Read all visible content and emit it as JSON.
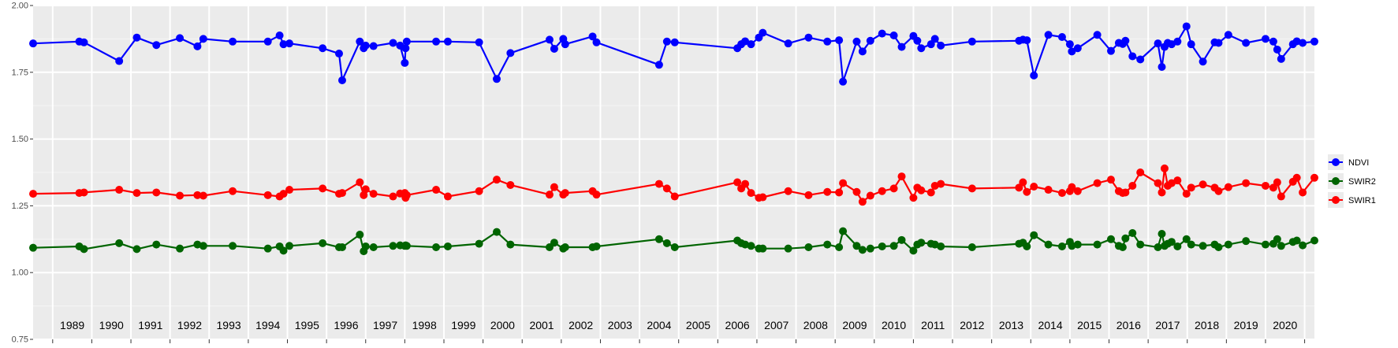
{
  "chart_data": {
    "type": "line",
    "title": "",
    "xlabel": "",
    "ylabel": "",
    "ylim": [
      0.75,
      2.0
    ],
    "y_ticks": [
      "0.75",
      "1.00",
      "1.25",
      "1.50",
      "1.75",
      "2.00"
    ],
    "x_range": [
      1988.0,
      2020.75
    ],
    "year_labels": [
      "1989",
      "1990",
      "1991",
      "1992",
      "1993",
      "1994",
      "1995",
      "1996",
      "1997",
      "1998",
      "1999",
      "2000",
      "2001",
      "2002",
      "2003",
      "2004",
      "2005",
      "2006",
      "2007",
      "2008",
      "2009",
      "2010",
      "2011",
      "2012",
      "2013",
      "2014",
      "2015",
      "2016",
      "2017",
      "2018",
      "2019",
      "2020"
    ],
    "grid": true,
    "legend_position": "right",
    "colors": {
      "panel": "#ebebeb",
      "grid_major": "#ffffff",
      "tick_text": "#4d4d4d",
      "year_text": "#000000"
    },
    "x": [
      1988.0,
      1989.18,
      1989.3,
      1990.2,
      1990.65,
      1991.15,
      1991.75,
      1992.2,
      1992.35,
      1993.1,
      1994.0,
      1994.3,
      1994.4,
      1994.55,
      1995.4,
      1995.82,
      1995.9,
      1996.35,
      1996.45,
      1996.5,
      1996.7,
      1997.2,
      1997.38,
      1997.5,
      1997.52,
      1997.55,
      1998.3,
      1998.6,
      1999.4,
      1999.85,
      2000.2,
      2001.2,
      2001.32,
      2001.55,
      2001.6,
      2002.3,
      2002.4,
      2004.0,
      2004.2,
      2004.4,
      2006.0,
      2006.1,
      2006.2,
      2006.35,
      2006.55,
      2006.65,
      2007.3,
      2007.82,
      2008.3,
      2008.6,
      2008.7,
      2009.05,
      2009.2,
      2009.4,
      2009.7,
      2010.0,
      2010.2,
      2010.5,
      2010.6,
      2010.7,
      2010.95,
      2011.05,
      2011.2,
      2012.0,
      2013.2,
      2013.3,
      2013.4,
      2013.58,
      2013.95,
      2014.3,
      2014.5,
      2014.55,
      2014.7,
      2015.2,
      2015.55,
      2015.75,
      2015.85,
      2015.92,
      2016.1,
      2016.3,
      2016.75,
      2016.85,
      2016.92,
      2017.0,
      2017.1,
      2017.25,
      2017.48,
      2017.6,
      2017.9,
      2018.2,
      2018.3,
      2018.55,
      2019.0,
      2019.5,
      2019.7,
      2019.8,
      2019.9,
      2020.2,
      2020.3,
      2020.45,
      2020.75
    ],
    "series": [
      {
        "name": "NDVI",
        "color": "#0000ff",
        "values": [
          1.858,
          1.865,
          1.862,
          1.792,
          1.88,
          1.852,
          1.878,
          1.847,
          1.875,
          1.865,
          1.865,
          1.888,
          1.855,
          1.858,
          1.84,
          1.82,
          1.72,
          1.865,
          1.84,
          1.85,
          1.848,
          1.86,
          1.85,
          1.785,
          1.84,
          1.865,
          1.865,
          1.865,
          1.862,
          1.725,
          1.822,
          1.872,
          1.838,
          1.875,
          1.855,
          1.884,
          1.862,
          1.778,
          1.865,
          1.862,
          1.84,
          1.855,
          1.866,
          1.855,
          1.88,
          1.898,
          1.858,
          1.88,
          1.865,
          1.87,
          1.715,
          1.865,
          1.828,
          1.868,
          1.895,
          1.888,
          1.845,
          1.886,
          1.868,
          1.84,
          1.855,
          1.875,
          1.85,
          1.865,
          1.868,
          1.872,
          1.87,
          1.738,
          1.89,
          1.882,
          1.855,
          1.828,
          1.84,
          1.89,
          1.83,
          1.86,
          1.856,
          1.868,
          1.81,
          1.798,
          1.858,
          1.77,
          1.845,
          1.86,
          1.855,
          1.865,
          1.922,
          1.855,
          1.79,
          1.862,
          1.86,
          1.89,
          1.86,
          1.875,
          1.865,
          1.835,
          1.8,
          1.855,
          1.866,
          1.86,
          1.865
        ]
      },
      {
        "name": "SWIR1",
        "color": "#ff0000",
        "values": [
          1.295,
          1.298,
          1.3,
          1.31,
          1.298,
          1.3,
          1.288,
          1.29,
          1.288,
          1.305,
          1.29,
          1.285,
          1.295,
          1.31,
          1.315,
          1.295,
          1.298,
          1.338,
          1.29,
          1.312,
          1.295,
          1.285,
          1.296,
          1.298,
          1.28,
          1.29,
          1.31,
          1.285,
          1.305,
          1.348,
          1.328,
          1.292,
          1.32,
          1.292,
          1.298,
          1.305,
          1.292,
          1.332,
          1.315,
          1.285,
          1.338,
          1.315,
          1.332,
          1.298,
          1.28,
          1.282,
          1.305,
          1.29,
          1.302,
          1.3,
          1.335,
          1.302,
          1.265,
          1.288,
          1.305,
          1.315,
          1.36,
          1.28,
          1.318,
          1.308,
          1.3,
          1.325,
          1.332,
          1.315,
          1.318,
          1.338,
          1.302,
          1.322,
          1.31,
          1.298,
          1.305,
          1.32,
          1.305,
          1.335,
          1.348,
          1.305,
          1.298,
          1.3,
          1.325,
          1.375,
          1.335,
          1.3,
          1.39,
          1.325,
          1.335,
          1.345,
          1.295,
          1.318,
          1.33,
          1.318,
          1.305,
          1.32,
          1.335,
          1.325,
          1.318,
          1.338,
          1.285,
          1.34,
          1.355,
          1.3,
          1.355
        ]
      },
      {
        "name": "SWIR2",
        "color": "#006400",
        "values": [
          1.093,
          1.098,
          1.088,
          1.11,
          1.088,
          1.105,
          1.09,
          1.105,
          1.1,
          1.1,
          1.09,
          1.098,
          1.082,
          1.1,
          1.11,
          1.095,
          1.095,
          1.142,
          1.08,
          1.098,
          1.095,
          1.1,
          1.102,
          1.1,
          1.102,
          1.1,
          1.095,
          1.098,
          1.108,
          1.152,
          1.105,
          1.095,
          1.112,
          1.09,
          1.095,
          1.095,
          1.098,
          1.125,
          1.11,
          1.095,
          1.12,
          1.11,
          1.105,
          1.1,
          1.09,
          1.09,
          1.09,
          1.095,
          1.105,
          1.095,
          1.155,
          1.1,
          1.085,
          1.09,
          1.098,
          1.1,
          1.122,
          1.082,
          1.105,
          1.112,
          1.108,
          1.105,
          1.098,
          1.095,
          1.108,
          1.112,
          1.098,
          1.14,
          1.105,
          1.098,
          1.115,
          1.1,
          1.105,
          1.105,
          1.125,
          1.1,
          1.095,
          1.128,
          1.148,
          1.105,
          1.095,
          1.145,
          1.1,
          1.108,
          1.115,
          1.098,
          1.125,
          1.105,
          1.1,
          1.105,
          1.095,
          1.105,
          1.118,
          1.105,
          1.108,
          1.125,
          1.1,
          1.115,
          1.12,
          1.102,
          1.12
        ]
      }
    ],
    "legend": [
      "NDVI",
      "SWIR2",
      "SWIR1"
    ]
  }
}
